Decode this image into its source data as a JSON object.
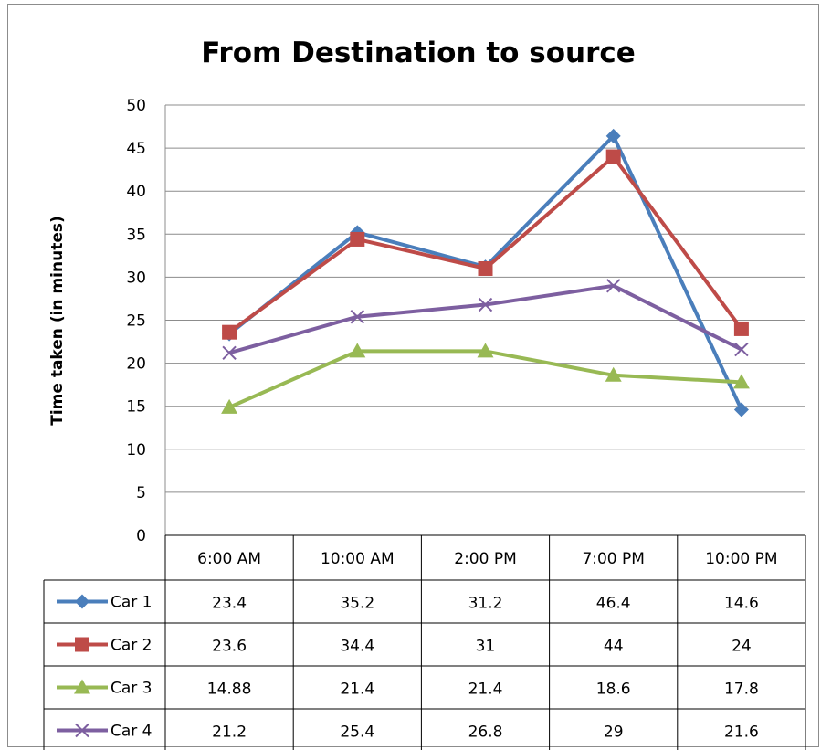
{
  "chart_data": {
    "type": "line",
    "title": "From Destination to source",
    "xlabel": "",
    "ylabel": "Time taken (in minutes)",
    "ylim": [
      0,
      50
    ],
    "yticks": [
      0,
      5,
      10,
      15,
      20,
      25,
      30,
      35,
      40,
      45,
      50
    ],
    "grid": true,
    "data_table": true,
    "categories": [
      "6:00 AM",
      "10:00 AM",
      "2:00 PM",
      "7:00 PM",
      "10:00 PM"
    ],
    "series": [
      {
        "name": "Car 1",
        "values": [
          23.4,
          35.2,
          31.2,
          46.4,
          14.6
        ],
        "labels": [
          "23.4",
          "35.2",
          "31.2",
          "46.4",
          "14.6"
        ],
        "color": "#4a7ebb",
        "marker": "diamond"
      },
      {
        "name": "Car 2",
        "values": [
          23.6,
          34.4,
          31,
          44,
          24
        ],
        "labels": [
          "23.6",
          "34.4",
          "31",
          "44",
          "24"
        ],
        "color": "#be4b48",
        "marker": "square"
      },
      {
        "name": "Car 3",
        "values": [
          14.88,
          21.4,
          21.4,
          18.6,
          17.8
        ],
        "labels": [
          "14.88",
          "21.4",
          "21.4",
          "18.6",
          "17.8"
        ],
        "color": "#98b954",
        "marker": "triangle"
      },
      {
        "name": "Car 4",
        "values": [
          21.2,
          25.4,
          26.8,
          29,
          21.6
        ],
        "labels": [
          "21.2",
          "25.4",
          "26.8",
          "29",
          "21.6"
        ],
        "color": "#7d5fa0",
        "marker": "x"
      }
    ]
  }
}
